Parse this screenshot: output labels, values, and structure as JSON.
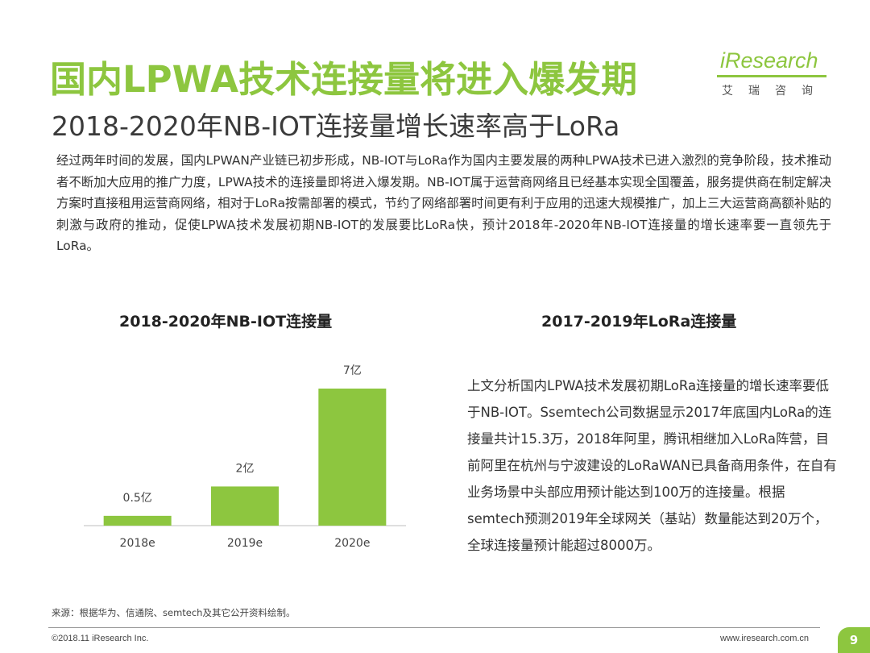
{
  "title": "国内LPWA技术连接量将进入爆发期",
  "subtitle": "2018-2020年NB-IOT连接量增长速率高于LoRa",
  "logo": {
    "brand": "iResearch",
    "sub": "艾瑞咨询"
  },
  "intro": "经过两年时间的发展，国内LPWAN产业链已初步形成，NB-IOT与LoRa作为国内主要发展的两种LPWA技术已进入激烈的竞争阶段，技术推动者不断加大应用的推广力度，LPWA技术的连接量即将进入爆发期。NB-IOT属于运营商网络且已经基本实现全国覆盖，服务提供商在制定解决方案时直接租用运营商网络，相对于LoRa按需部署的模式，节约了网络部署时间更有利于应用的迅速大规模推广，加上三大运营商高额补贴的刺激与政府的推动，促使LPWA技术发展初期NB-IOT的发展要比LoRa快，预计2018年-2020年NB-IOT连接量的增长速率要一直领先于LoRa。",
  "left_title": "2018-2020年NB-IOT连接量",
  "right_title": "2017-2019年LoRa连接量",
  "right_text": "上文分析国内LPWA技术发展初期LoRa连接量的增长速率要低于NB-IOT。Ssemtech公司数据显示2017年底国内LoRa的连接量共计15.3万，2018年阿里，腾讯相继加入LoRa阵营，目前阿里在杭州与宁波建设的LoRaWAN已具备商用条件，在自有业务场景中头部应用预计能达到100万的连接量。根据semtech预测2019年全球网关（基站）数量能达到20万个，全球连接量预计能超过8000万。",
  "source": "来源：根据华为、信通院、semtech及其它公开资料绘制。",
  "copyright": "©2018.11 iResearch Inc.",
  "site": "www.iresearch.com.cn",
  "page_number": "9",
  "colors": {
    "accent": "#8dc63f",
    "bar": "#8dc63f"
  },
  "chart_data": {
    "type": "bar",
    "title": "2018-2020年NB-IOT连接量",
    "categories": [
      "2018e",
      "2019e",
      "2020e"
    ],
    "values": [
      0.5,
      2,
      7
    ],
    "data_labels": [
      "0.5亿",
      "2亿",
      "7亿"
    ],
    "xlabel": "",
    "ylabel": "",
    "ylim": [
      0,
      7
    ],
    "grid": false,
    "legend": "none"
  }
}
